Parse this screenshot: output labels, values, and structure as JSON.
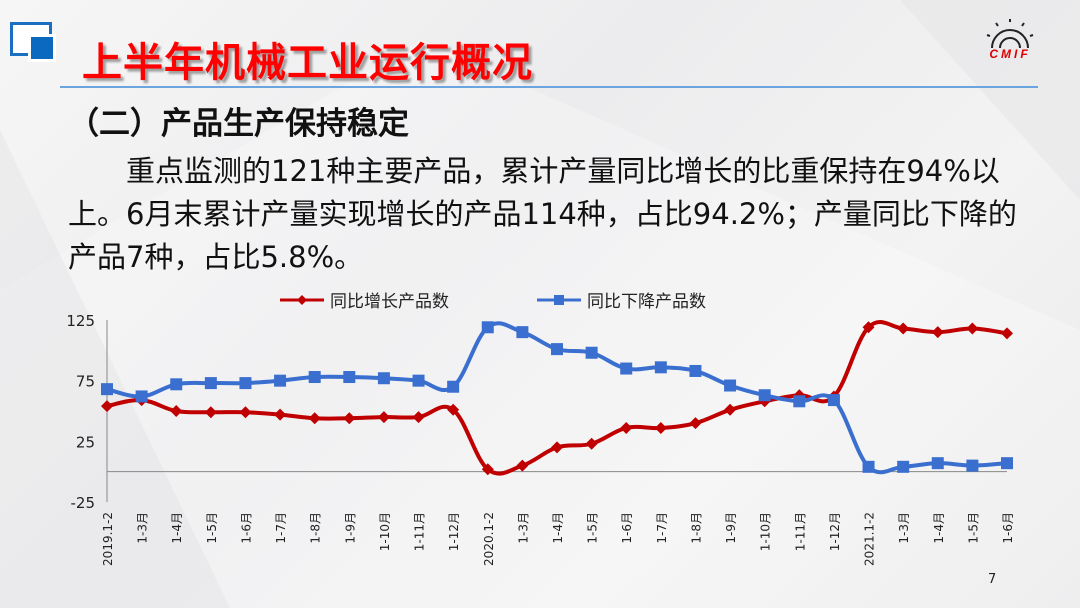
{
  "header": {
    "title": "上半年机械工业运行概况",
    "logo_text": "CMIF"
  },
  "section": {
    "subtitle": "（二）产品生产保持稳定"
  },
  "paragraph": {
    "text": "重点监测的121种主要产品，累计产量同比增长的比重保持在94%以上。6月末累计产量实现增长的产品114种，占比94.2%；产量同比下降的产品7种，占比5.8%。"
  },
  "page_number": "7",
  "chart_data": {
    "type": "line",
    "categories": [
      "2019.1-2",
      "1-3月",
      "1-4月",
      "1-5月",
      "1-6月",
      "1-7月",
      "1-8月",
      "1-9月",
      "1-10月",
      "1-11月",
      "1-12月",
      "2020.1-2",
      "1-3月",
      "1-4月",
      "1-5月",
      "1-6月",
      "1-7月",
      "1-8月",
      "1-9月",
      "1-10月",
      "1-11月",
      "1-12月",
      "2021.1-2",
      "1-3月",
      "1-4月",
      "1-5月",
      "1-6月"
    ],
    "series": [
      {
        "name": "同比增长产品数",
        "color": "#c00000",
        "marker": "diamond",
        "values": [
          54,
          59,
          50,
          49,
          49,
          47,
          44,
          44,
          45,
          45,
          51,
          2,
          5,
          20,
          23,
          36,
          36,
          40,
          51,
          58,
          63,
          62,
          119,
          118,
          115,
          118,
          114
        ]
      },
      {
        "name": "同比下降产品数",
        "color": "#3a6fd0",
        "marker": "square",
        "values": [
          68,
          62,
          72,
          73,
          73,
          75,
          78,
          78,
          77,
          75,
          70,
          119,
          115,
          101,
          98,
          85,
          86,
          83,
          71,
          63,
          58,
          59,
          4,
          4,
          7,
          5,
          7
        ]
      }
    ],
    "yticks": [
      125,
      75,
      25,
      -25
    ],
    "ylim": [
      -25,
      125
    ],
    "legend": "top",
    "grid": false
  }
}
